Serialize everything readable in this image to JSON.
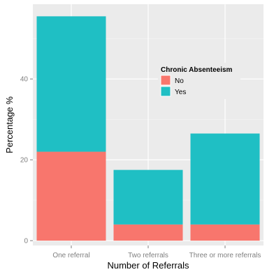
{
  "chart_data": {
    "type": "bar",
    "stacked": true,
    "title": "",
    "xlabel": "Number of Referrals",
    "ylabel": "Percentage %",
    "categories": [
      "One referral",
      "Two referrals",
      "Three or more referrals"
    ],
    "series": [
      {
        "name": "No",
        "values": [
          22,
          4,
          4
        ],
        "color": "#f8766d"
      },
      {
        "name": "Yes",
        "values": [
          33.5,
          13.5,
          22.5
        ],
        "color": "#1fbfc4"
      }
    ],
    "ylim": [
      -1.2,
      58.5
    ],
    "yticks": [
      0,
      20,
      40
    ],
    "grid": true,
    "legend": {
      "title": "Chronic Absenteeism",
      "placement": "top-right"
    },
    "panel_background": "#ebebeb"
  }
}
